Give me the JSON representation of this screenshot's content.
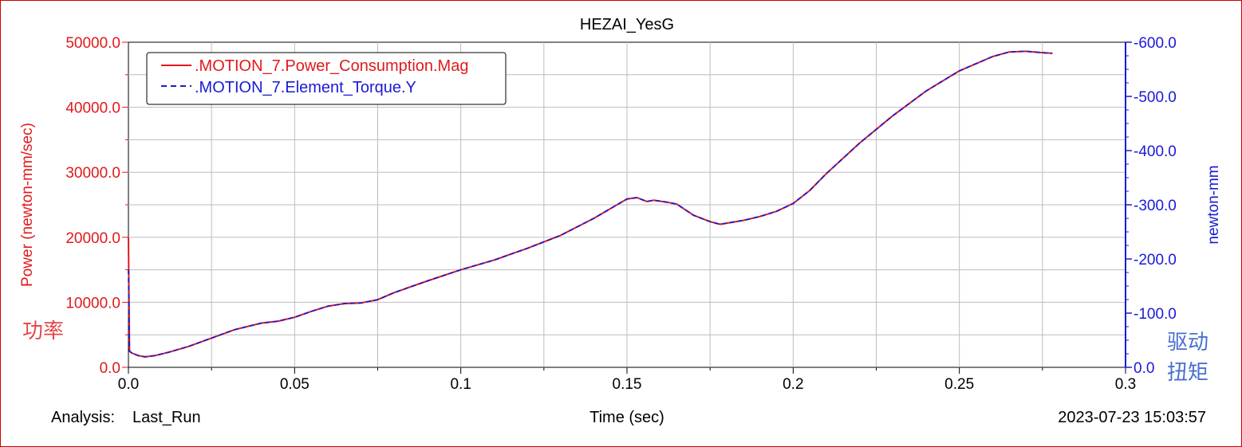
{
  "footer": {
    "analysis_label": "Analysis:",
    "analysis_value": "Last_Run",
    "timestamp": "2023-07-23 15:03:57"
  },
  "annotations": {
    "left_cn": "功率",
    "right_cn_line1": "驱动",
    "right_cn_line2": "扭矩"
  },
  "colors": {
    "left_axis": "#e0191c",
    "right_axis": "#1a1ad6",
    "power_series": "#e0191c",
    "torque_series": "#1a1ad6",
    "grid": "#bdbdbd",
    "annot_left": "#e04848",
    "annot_right": "#4a6fd0",
    "frame": "#cc0000"
  },
  "chart_data": {
    "type": "line",
    "title": "HEZAI_YesG",
    "xlabel": "Time (sec)",
    "ylabel": "Power (newton-mm/sec)",
    "y2label": "newton-mm",
    "xlim": [
      0.0,
      0.3
    ],
    "ylim": [
      0.0,
      50000.0
    ],
    "y2lim": [
      0.0,
      -600.0
    ],
    "x_ticks": [
      0.0,
      0.05,
      0.1,
      0.15,
      0.2,
      0.25,
      0.3
    ],
    "x_tick_labels": [
      "0.0",
      "0.05",
      "0.1",
      "0.15",
      "0.2",
      "0.25",
      "0.3"
    ],
    "y_ticks": [
      0,
      10000,
      20000,
      30000,
      40000,
      50000
    ],
    "y_tick_labels": [
      "0.0",
      "10000.0",
      "20000.0",
      "30000.0",
      "40000.0",
      "50000.0"
    ],
    "y2_ticks": [
      0,
      -100,
      -200,
      -300,
      -400,
      -500,
      -600
    ],
    "y2_tick_labels": [
      "0.0",
      "-100.0",
      "-200.0",
      "-300.0",
      "-400.0",
      "-500.0",
      "-600.0"
    ],
    "grid": true,
    "legend_position": "top-left",
    "series": [
      {
        "name": ".MOTION_7.Power_Consumption.Mag",
        "axis": "left",
        "style": "solid",
        "x": [
          0.0,
          0.0003,
          0.001,
          0.003,
          0.005,
          0.008,
          0.012,
          0.018,
          0.025,
          0.032,
          0.04,
          0.045,
          0.05,
          0.055,
          0.06,
          0.065,
          0.07,
          0.075,
          0.08,
          0.09,
          0.1,
          0.11,
          0.12,
          0.13,
          0.14,
          0.15,
          0.153,
          0.156,
          0.158,
          0.162,
          0.165,
          0.17,
          0.175,
          0.178,
          0.185,
          0.19,
          0.195,
          0.2,
          0.205,
          0.21,
          0.22,
          0.23,
          0.24,
          0.25,
          0.26,
          0.265,
          0.27,
          0.275,
          0.278
        ],
        "y": [
          20000,
          2500,
          2200,
          1800,
          1600,
          1800,
          2300,
          3200,
          4500,
          5800,
          6800,
          7100,
          7700,
          8600,
          9400,
          9800,
          9900,
          10400,
          11500,
          13300,
          15000,
          16500,
          18300,
          20300,
          22900,
          25900,
          26100,
          25500,
          25700,
          25400,
          25100,
          23400,
          22400,
          22000,
          22600,
          23200,
          24000,
          25200,
          27200,
          29800,
          34500,
          38700,
          42500,
          45600,
          47800,
          48500,
          48600,
          48400,
          48300
        ]
      },
      {
        "name": ".MOTION_7.Element_Torque.Y",
        "axis": "right",
        "style": "dashed",
        "x": [
          0.0,
          0.0003,
          0.001,
          0.003,
          0.005,
          0.008,
          0.012,
          0.018,
          0.025,
          0.032,
          0.04,
          0.045,
          0.05,
          0.055,
          0.06,
          0.065,
          0.07,
          0.075,
          0.08,
          0.09,
          0.1,
          0.11,
          0.12,
          0.13,
          0.14,
          0.15,
          0.153,
          0.156,
          0.158,
          0.162,
          0.165,
          0.17,
          0.175,
          0.178,
          0.185,
          0.19,
          0.195,
          0.2,
          0.205,
          0.21,
          0.22,
          0.23,
          0.24,
          0.25,
          0.26,
          0.265,
          0.27,
          0.275,
          0.278
        ],
        "y": [
          -180,
          -30,
          -26,
          -21.6,
          -19.2,
          -21.6,
          -27.6,
          -38.4,
          -54,
          -69.6,
          -81.6,
          -85.2,
          -92.4,
          -103.2,
          -112.8,
          -117.6,
          -118.8,
          -124.8,
          -138,
          -159.6,
          -180,
          -198,
          -219.6,
          -243.6,
          -274.8,
          -310.8,
          -313.2,
          -306,
          -308.4,
          -304.8,
          -301.2,
          -280.8,
          -268.8,
          -264,
          -271.2,
          -278.4,
          -288,
          -302.4,
          -326.4,
          -357.6,
          -414,
          -464.4,
          -510,
          -547.2,
          -573.6,
          -582,
          -583.2,
          -580.8,
          -579.6
        ]
      }
    ]
  }
}
